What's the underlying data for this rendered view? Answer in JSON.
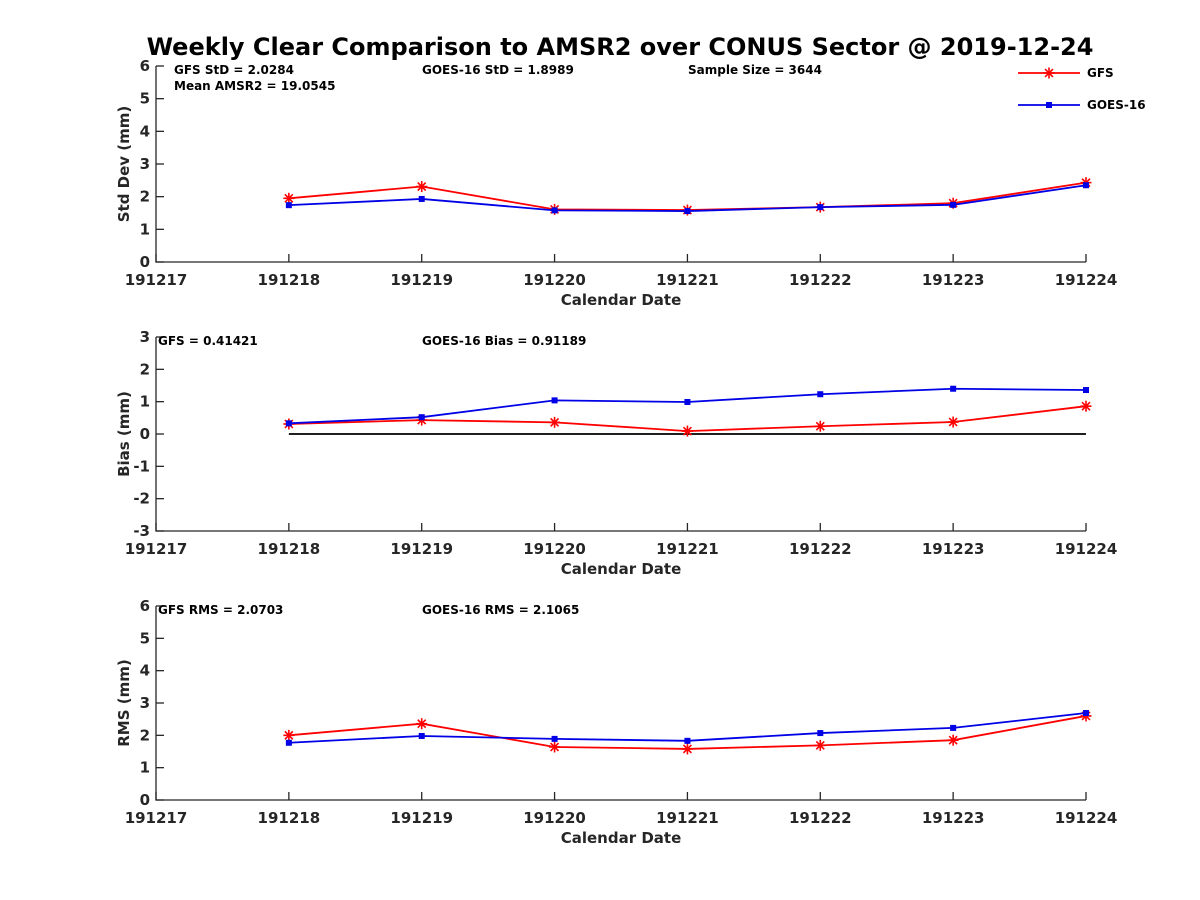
{
  "title": "Weekly Clear Comparison to AMSR2 over CONUS Sector @ 2019-12-24",
  "colors": {
    "gfs": "#ff0000",
    "goes": "#0000e6",
    "zero_line": "#000000",
    "axis": "#262626"
  },
  "legend": {
    "placement": "top-right",
    "entries": [
      {
        "label": "GFS",
        "marker": "asterisk"
      },
      {
        "label": "GOES-16",
        "marker": "square"
      }
    ]
  },
  "chart_data": [
    {
      "type": "line",
      "id": "std",
      "xlabel": "Calendar Date",
      "ylabel": "Std Dev (mm)",
      "categories": [
        "191217",
        "191218",
        "191219",
        "191220",
        "191221",
        "191222",
        "191223",
        "191224"
      ],
      "ylim": [
        0,
        6
      ],
      "yticks": [
        "0",
        "1",
        "2",
        "3",
        "4",
        "5",
        "6"
      ],
      "grid": false,
      "annotations": [
        {
          "text": "GFS StD = 2.0284"
        },
        {
          "text": "Mean AMSR2 = 19.0545"
        },
        {
          "text": "GOES-16 StD = 1.8989"
        },
        {
          "text": "Sample Size = 3644"
        }
      ],
      "series": [
        {
          "name": "GFS",
          "x": [
            "191218",
            "191219",
            "191220",
            "191221",
            "191222",
            "191223",
            "191224"
          ],
          "values": [
            1.95,
            2.31,
            1.61,
            1.59,
            1.68,
            1.8,
            2.43
          ]
        },
        {
          "name": "GOES-16",
          "x": [
            "191218",
            "191219",
            "191220",
            "191221",
            "191222",
            "191223",
            "191224"
          ],
          "values": [
            1.74,
            1.93,
            1.58,
            1.56,
            1.68,
            1.75,
            2.35
          ]
        }
      ]
    },
    {
      "type": "line",
      "id": "bias",
      "xlabel": "Calendar Date",
      "ylabel": "Bias (mm)",
      "categories": [
        "191217",
        "191218",
        "191219",
        "191220",
        "191221",
        "191222",
        "191223",
        "191224"
      ],
      "ylim": [
        -3,
        3
      ],
      "yticks": [
        "-3",
        "-2",
        "-1",
        "0",
        "1",
        "2",
        "3"
      ],
      "grid": false,
      "zero_line": true,
      "annotations": [
        {
          "text": "GFS = 0.41421"
        },
        {
          "text": "GOES-16 Bias  = 0.91189"
        }
      ],
      "series": [
        {
          "name": "GFS",
          "x": [
            "191218",
            "191219",
            "191220",
            "191221",
            "191222",
            "191223",
            "191224"
          ],
          "values": [
            0.31,
            0.43,
            0.36,
            0.09,
            0.24,
            0.37,
            0.86
          ]
        },
        {
          "name": "GOES-16",
          "x": [
            "191218",
            "191219",
            "191220",
            "191221",
            "191222",
            "191223",
            "191224"
          ],
          "values": [
            0.33,
            0.52,
            1.04,
            0.99,
            1.23,
            1.4,
            1.36
          ]
        }
      ]
    },
    {
      "type": "line",
      "id": "rms",
      "xlabel": "Calendar Date",
      "ylabel": "RMS (mm)",
      "categories": [
        "191217",
        "191218",
        "191219",
        "191220",
        "191221",
        "191222",
        "191223",
        "191224"
      ],
      "ylim": [
        0,
        6
      ],
      "yticks": [
        "0",
        "1",
        "2",
        "3",
        "4",
        "5",
        "6"
      ],
      "grid": false,
      "annotations": [
        {
          "text": "GFS RMS = 2.0703"
        },
        {
          "text": "GOES-16 RMS = 2.1065"
        }
      ],
      "series": [
        {
          "name": "GFS",
          "x": [
            "191218",
            "191219",
            "191220",
            "191221",
            "191222",
            "191223",
            "191224"
          ],
          "values": [
            2.0,
            2.36,
            1.64,
            1.58,
            1.69,
            1.85,
            2.6
          ]
        },
        {
          "name": "GOES-16",
          "x": [
            "191218",
            "191219",
            "191220",
            "191221",
            "191222",
            "191223",
            "191224"
          ],
          "values": [
            1.77,
            1.98,
            1.89,
            1.83,
            2.07,
            2.23,
            2.69
          ]
        }
      ]
    }
  ]
}
